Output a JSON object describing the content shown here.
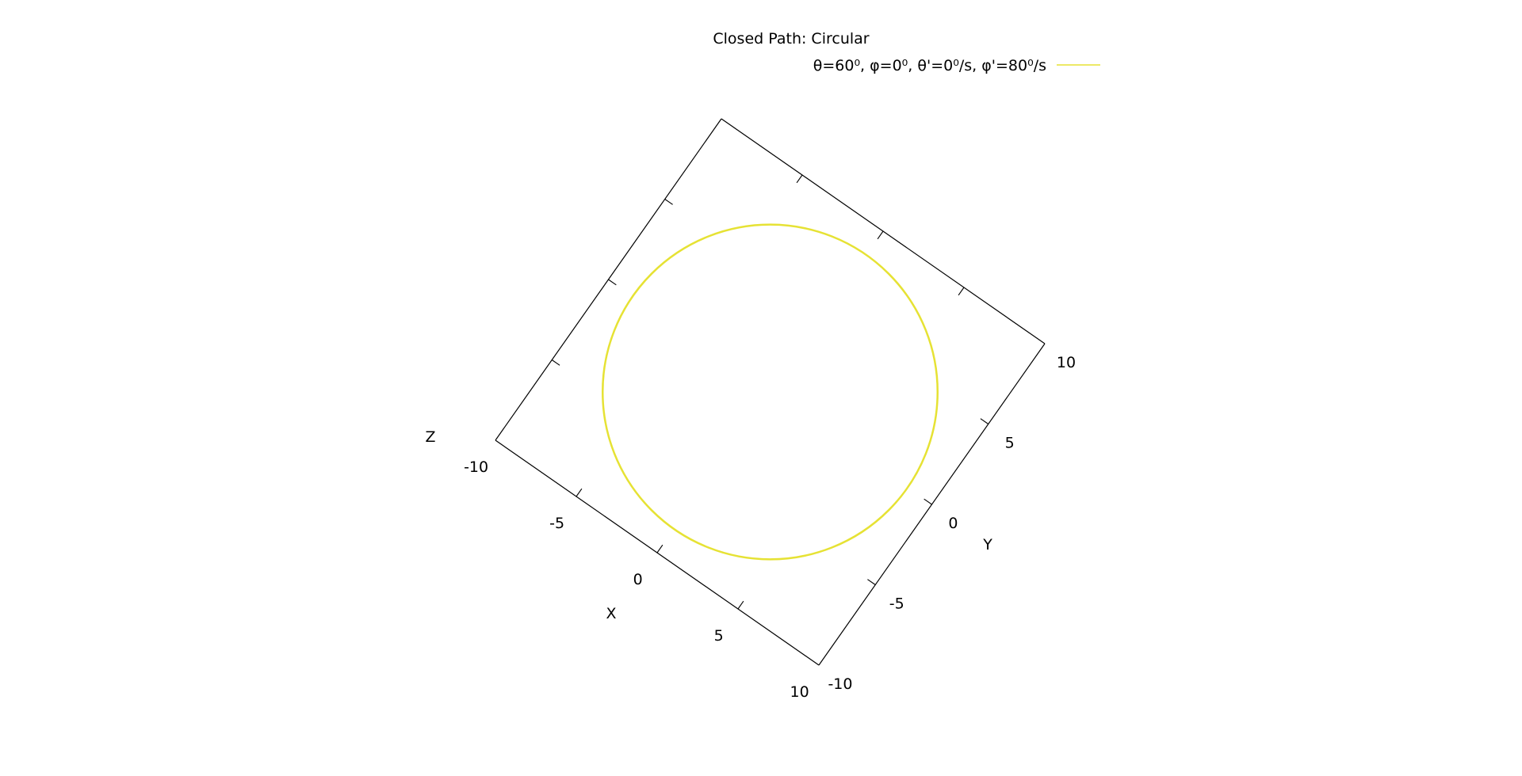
{
  "chart_data": {
    "type": "line",
    "title": "Closed Path: Circular",
    "legend_placement": "top-right",
    "grid": false,
    "view": "3d-rotated",
    "axes": {
      "x": {
        "label": "X",
        "range": [
          -10,
          10
        ],
        "ticks": [
          -10,
          -5,
          0,
          5,
          10
        ],
        "tick_labels": [
          "-10",
          "-5",
          "0",
          "5",
          "10"
        ]
      },
      "y": {
        "label": "Y",
        "range": [
          -10,
          10
        ],
        "ticks": [
          -10,
          -5,
          0,
          5,
          10
        ],
        "tick_labels": [
          "-10",
          "-5",
          "0",
          "5",
          "10"
        ]
      },
      "z": {
        "label": "Z",
        "range": [
          -10,
          10
        ]
      }
    },
    "series": [
      {
        "name": "θ=60⁰, φ=0⁰, θ'=0⁰/s, φ'=80⁰/s",
        "color": "#e6e234",
        "shape": "circle",
        "center_xy": [
          0,
          0
        ],
        "radius": 6.5
      }
    ]
  }
}
